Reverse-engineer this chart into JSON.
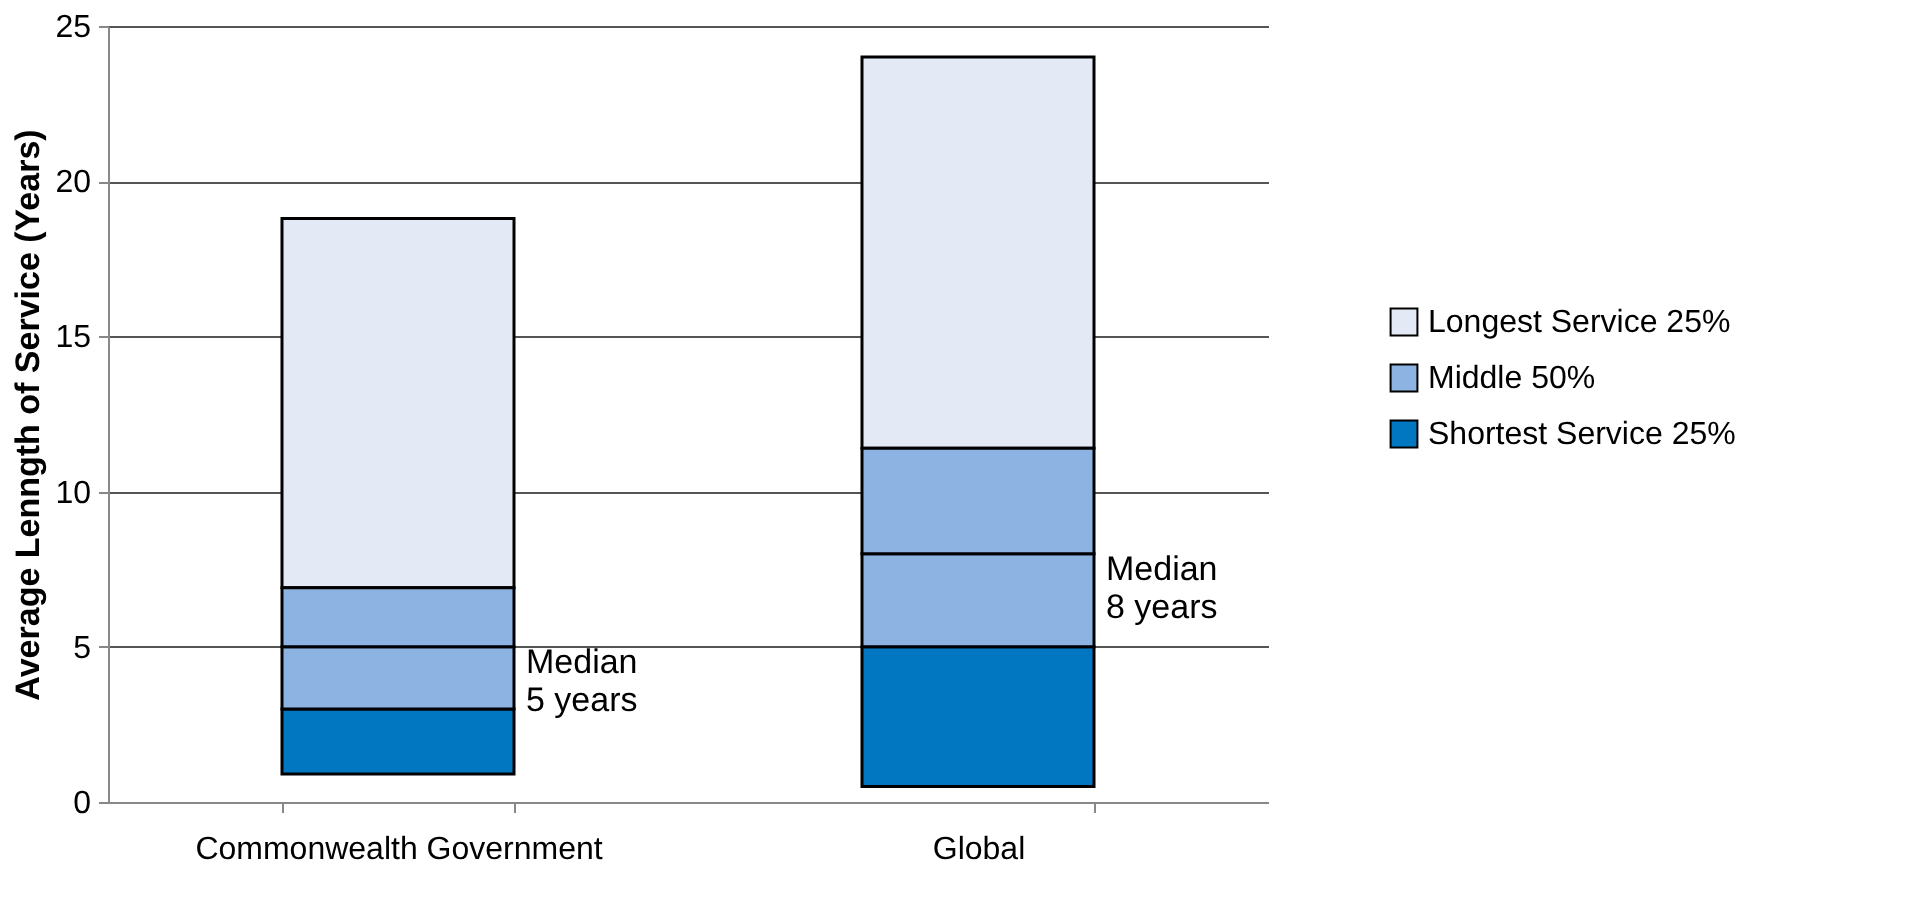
{
  "chart_data": {
    "type": "bar",
    "ylabel": "Average Lenngth of Service (Years)",
    "categories": [
      "Commonwealth Government",
      "Global"
    ],
    "series": [
      {
        "name": "Shortest Service 25%",
        "color": "#0077c0",
        "values": [
          2.1,
          4.5
        ],
        "base": [
          0.9,
          0.5
        ]
      },
      {
        "name": "Middle 50%",
        "color": "#8db3e2",
        "values": [
          2,
          3
        ],
        "base": [
          3,
          5
        ]
      },
      {
        "color": "#8db3e2",
        "values": [
          1.9,
          3.4
        ],
        "base": [
          5,
          8
        ]
      },
      {
        "name": "Longest Service 25%",
        "color": "#e4eaf5",
        "values": [
          11.9,
          12.6
        ],
        "base": [
          6.9,
          11.4
        ]
      }
    ],
    "ylim": [
      0,
      25
    ],
    "yticks": [
      0,
      5,
      10,
      15,
      20,
      25
    ],
    "grid": "y",
    "legend": "right",
    "annotations": [
      "Median\n5 years",
      "Median\n8 years"
    ]
  }
}
